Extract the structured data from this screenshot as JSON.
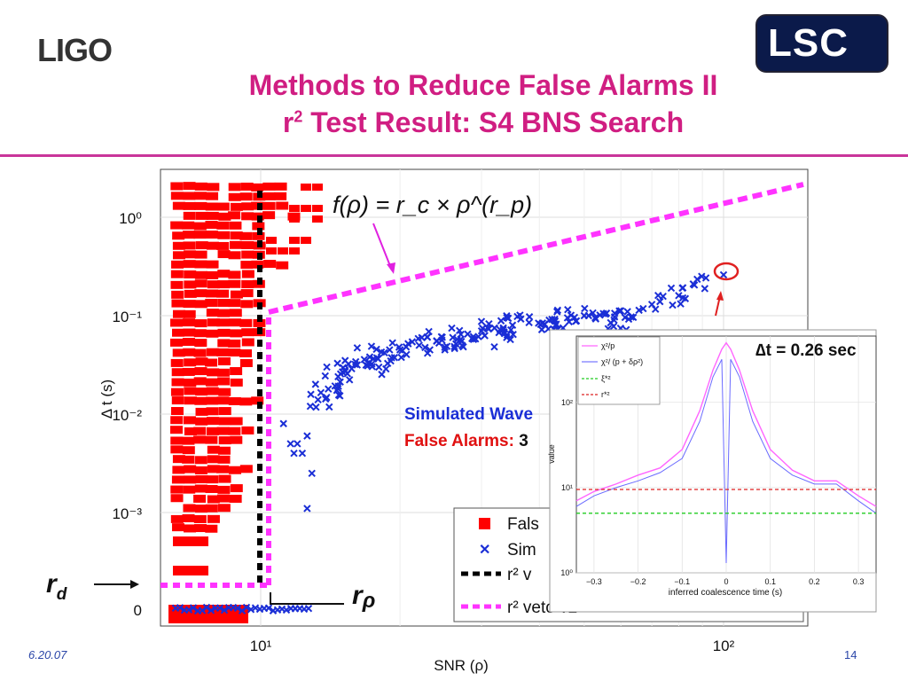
{
  "header": {
    "logo_left": "LIGO",
    "logo_right": "LSC",
    "title_line1": "Methods to Reduce False Alarms II",
    "title_line2_pre": "r",
    "title_line2_sup": "2",
    "title_line2_post": " Test Result: S4 BNS Search"
  },
  "footer": {
    "date": "6.20.07",
    "page": "14"
  },
  "colors": {
    "title": "#d01e82",
    "false_alarms": "#ff0000",
    "simulated": "#1a2ed6",
    "veto_v1": "#000000",
    "veto_v2": "#ff33ff"
  },
  "annotations": {
    "formula": "f(ρ) = r_c × ρ^(r_p)",
    "rd_label": "r",
    "rd_sub": "d",
    "rp_label": "r",
    "rp_sub": "ρ",
    "dt_label": "∆t = 0.26 sec",
    "simulated_text": "Simulated Wave",
    "false_alarms_text": "False Alarms: ",
    "false_alarms_count": "3"
  },
  "chart_data": [
    {
      "type": "scatter",
      "xlabel": "SNR (ρ)",
      "ylabel": "Δ t (s)",
      "x_scale": "log",
      "y_scale": "log",
      "x_ticks": [
        "10¹",
        "10²"
      ],
      "y_ticks": [
        "10⁰",
        "10⁻¹",
        "10⁻²",
        "10⁻³",
        "0"
      ],
      "legend": {
        "placement": "bottom-right",
        "entries": [
          "Fals",
          "Sim",
          "r² v",
          "r² veto v2"
        ]
      },
      "series": [
        {
          "name": "Simulated",
          "marker": "x",
          "points": [
            [
              11.2,
              0.008
            ],
            [
              11.6,
              0.005
            ],
            [
              11.8,
              0.004
            ],
            [
              12.0,
              0.005
            ],
            [
              12.3,
              0.004
            ],
            [
              12.6,
              0.006
            ],
            [
              12.8,
              0.012
            ],
            [
              13.3,
              0.014
            ],
            [
              14.0,
              0.018
            ],
            [
              14.7,
              0.024
            ],
            [
              15.2,
              0.028
            ],
            [
              16.0,
              0.032
            ],
            [
              17.2,
              0.038
            ],
            [
              18.5,
              0.042
            ],
            [
              20.0,
              0.045
            ],
            [
              22.0,
              0.05
            ],
            [
              24.0,
              0.055
            ],
            [
              26.0,
              0.06
            ],
            [
              28.0,
              0.065
            ],
            [
              30.0,
              0.07
            ],
            [
              32.0,
              0.075
            ],
            [
              35.0,
              0.08
            ],
            [
              38.0,
              0.085
            ],
            [
              42.0,
              0.09
            ],
            [
              46.0,
              0.095
            ],
            [
              50.0,
              0.1
            ],
            [
              55.0,
              0.105
            ],
            [
              62.0,
              0.11
            ],
            [
              70.0,
              0.13
            ],
            [
              80.0,
              0.16
            ],
            [
              86.0,
              0.21
            ],
            [
              100.0,
              0.26
            ],
            [
              12.9,
              0.0025
            ],
            [
              12.6,
              0.0011
            ],
            [
              18.0,
              0.03
            ],
            [
              25.0,
              0.045
            ],
            [
              34.0,
              0.06
            ],
            [
              45.0,
              0.075
            ],
            [
              58.0,
              0.09
            ]
          ]
        }
      ]
    },
    {
      "type": "line",
      "xlabel": "inferred coalescence time (s)",
      "ylabel": "value",
      "y_scale": "log",
      "x_ticks": [
        "−0.3",
        "−0.2",
        "−0.1",
        "0",
        "0.1",
        "0.2",
        "0.3"
      ],
      "y_ticks": [
        "10⁰",
        "10¹",
        "10²"
      ],
      "xlim": [
        -0.34,
        0.34
      ],
      "ylim": [
        1,
        600
      ],
      "legend": {
        "placement": "top-left",
        "entries": [
          "χ²/p",
          "χ²/ (p + δρ²)",
          "ξ*²",
          "r*²"
        ]
      },
      "series": [
        {
          "name": "χ²/p",
          "x": [
            -0.34,
            -0.3,
            -0.25,
            -0.2,
            -0.15,
            -0.1,
            -0.06,
            -0.03,
            -0.01,
            0.0,
            0.01,
            0.03,
            0.06,
            0.1,
            0.15,
            0.2,
            0.25,
            0.3,
            0.34
          ],
          "y": [
            7,
            9,
            11,
            14,
            17,
            28,
            80,
            240,
            420,
            500,
            420,
            240,
            80,
            28,
            16,
            12,
            12,
            8,
            6
          ]
        },
        {
          "name": "χ²/ (p + δρ²)",
          "x": [
            -0.34,
            -0.3,
            -0.25,
            -0.2,
            -0.15,
            -0.1,
            -0.06,
            -0.03,
            -0.01,
            0.0,
            0.01,
            0.03,
            0.06,
            0.1,
            0.15,
            0.2,
            0.25,
            0.3,
            0.34
          ],
          "y": [
            6,
            8,
            10,
            12,
            15,
            22,
            60,
            200,
            320,
            1.3,
            320,
            200,
            60,
            22,
            14,
            11,
            11,
            7,
            5
          ]
        },
        {
          "name": "ξ*²",
          "x": [
            -0.34,
            0.34
          ],
          "y": [
            5,
            5
          ]
        },
        {
          "name": "r*²",
          "x": [
            -0.34,
            0.34
          ],
          "y": [
            9.5,
            9.5
          ]
        }
      ]
    }
  ]
}
